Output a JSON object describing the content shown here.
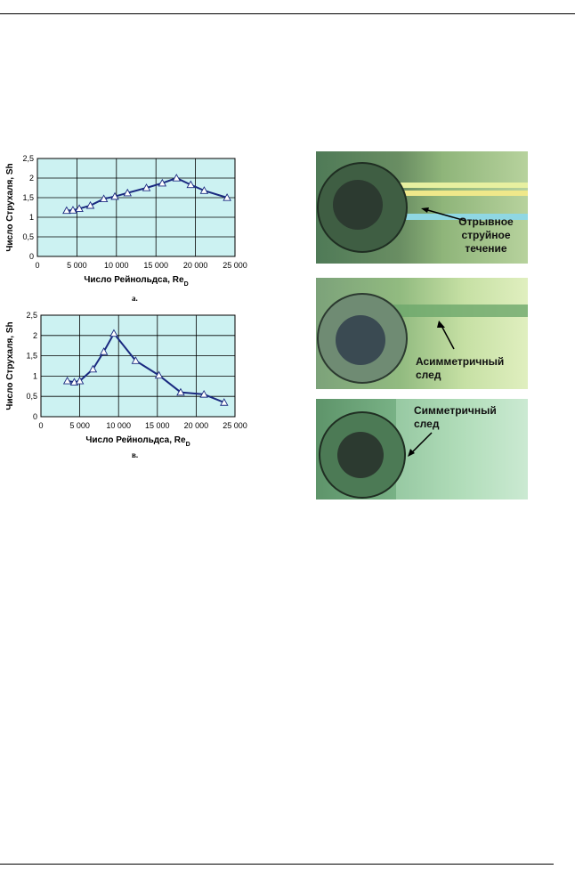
{
  "chart_data": [
    {
      "type": "line",
      "ylabel": "Число Струхаля, Sh",
      "xlabel": "Число Рейнольдса, Re",
      "xlabel_sub": "D",
      "caption": "а.",
      "xlim": [
        0,
        25000
      ],
      "ylim": [
        0,
        2.5
      ],
      "xticks": [
        "0",
        "5 000",
        "10 000",
        "15 000",
        "20 000",
        "25 000"
      ],
      "yticks": [
        "0",
        "0,5",
        "1",
        "1,5",
        "2",
        "2,5"
      ],
      "grid": true,
      "background": "#ccf2f2",
      "line_color": "#1a2a80",
      "marker": "triangle",
      "x": [
        3700,
        4500,
        5300,
        6700,
        8400,
        9800,
        11400,
        13800,
        15800,
        17600,
        19400,
        21100,
        24000
      ],
      "y": [
        1.17,
        1.18,
        1.22,
        1.3,
        1.47,
        1.53,
        1.62,
        1.75,
        1.87,
        2.0,
        1.83,
        1.68,
        1.5
      ]
    },
    {
      "type": "line",
      "ylabel": "Число Струхаля, Sh",
      "xlabel": "Число Рейнольдса, Re",
      "xlabel_sub": "D",
      "caption": "в.",
      "xlim": [
        0,
        25000
      ],
      "ylim": [
        0,
        2.5
      ],
      "xticks": [
        "0",
        "5 000",
        "10 000",
        "15 000",
        "20 000",
        "25 000"
      ],
      "yticks": [
        "0",
        "0,5",
        "1",
        "1,5",
        "2",
        "2,5"
      ],
      "grid": true,
      "background": "#ccf2f2",
      "line_color": "#1a2a80",
      "marker": "triangle",
      "x": [
        3400,
        4300,
        5000,
        6700,
        8100,
        9400,
        12200,
        15200,
        18000,
        21000,
        23600
      ],
      "y": [
        0.88,
        0.85,
        0.88,
        1.17,
        1.6,
        2.05,
        1.38,
        1.02,
        0.6,
        0.55,
        0.35
      ]
    }
  ],
  "photos": [
    {
      "lines": [
        "Отрывное",
        "струйное",
        "течение"
      ]
    },
    {
      "lines": [
        "Асимметричный",
        "след"
      ]
    },
    {
      "lines": [
        "Симметричный",
        "след"
      ]
    }
  ]
}
